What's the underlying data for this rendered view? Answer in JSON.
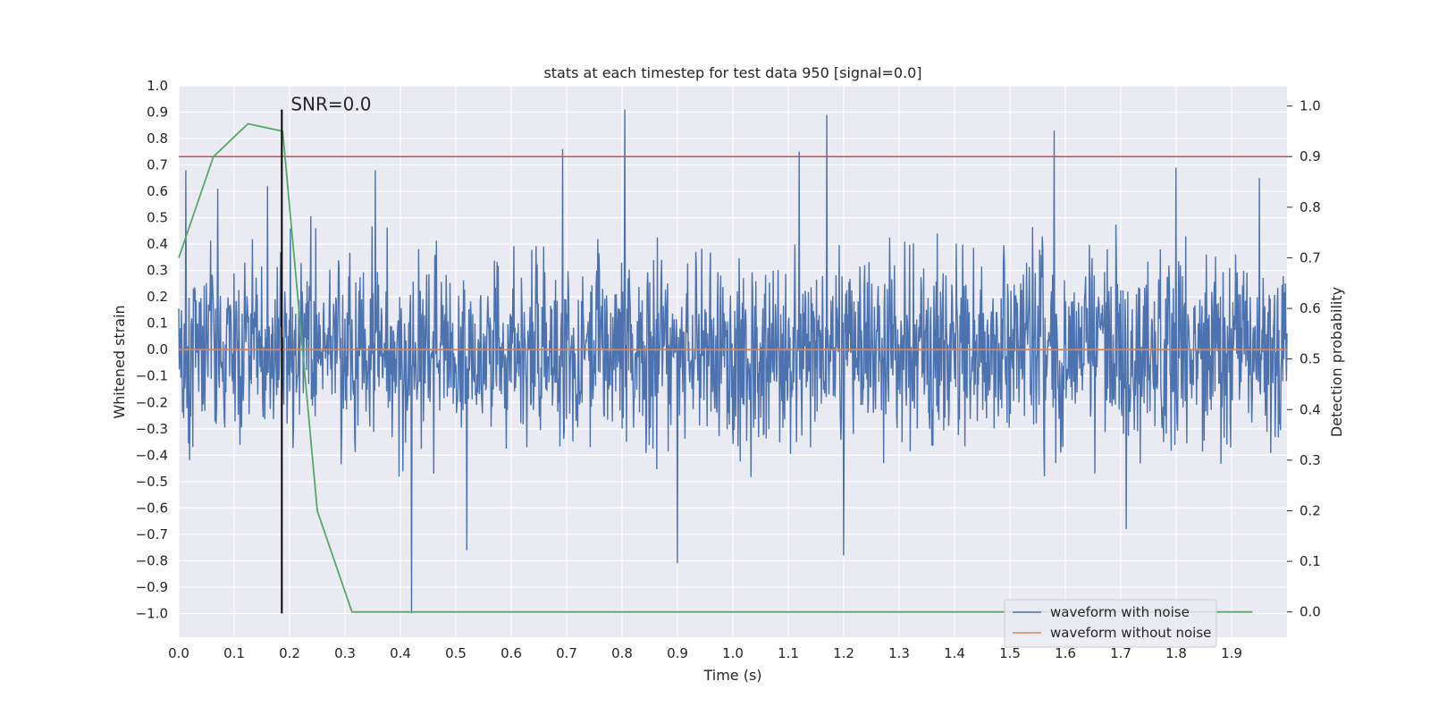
{
  "chart_data": {
    "type": "line",
    "title": "stats at each timestep for test data 950 [signal=0.0]",
    "xlabel": "Time (s)",
    "ylabel": "Whitened strain",
    "y2label": "Detection probability",
    "xlim": [
      0.0,
      2.0
    ],
    "ylim": [
      -1.09,
      1.0
    ],
    "y2lim": [
      -0.05,
      1.04
    ],
    "x_ticks": [
      "0.0",
      "0.1",
      "0.2",
      "0.3",
      "0.4",
      "0.5",
      "0.6",
      "0.7",
      "0.8",
      "0.9",
      "1.0",
      "1.1",
      "1.2",
      "1.3",
      "1.4",
      "1.5",
      "1.6",
      "1.7",
      "1.8",
      "1.9"
    ],
    "y_ticks": [
      "1.0",
      "0.9",
      "0.8",
      "0.7",
      "0.6",
      "0.5",
      "0.4",
      "0.3",
      "0.2",
      "0.1",
      "0.0",
      "−0.1",
      "−0.2",
      "−0.3",
      "−0.4",
      "−0.5",
      "−0.6",
      "−0.7",
      "−0.8",
      "−0.9",
      "−1.0"
    ],
    "y2_ticks": [
      "1.0",
      "0.9",
      "0.8",
      "0.7",
      "0.6",
      "0.5",
      "0.4",
      "0.3",
      "0.2",
      "0.1",
      "0.0"
    ],
    "grid": true,
    "legend_position": "lower-right",
    "series": [
      {
        "name": "waveform with noise",
        "color": "#4c72b0",
        "axis": "left",
        "noise_amplitude": 0.3,
        "samples": 2048,
        "peaks": [
          {
            "x": 0.013,
            "y": 0.68
          },
          {
            "x": 0.07,
            "y": 0.61
          },
          {
            "x": 0.16,
            "y": 0.62
          },
          {
            "x": 0.355,
            "y": 0.68
          },
          {
            "x": 0.42,
            "y": -1.0
          },
          {
            "x": 0.52,
            "y": -0.76
          },
          {
            "x": 0.693,
            "y": 0.76
          },
          {
            "x": 0.805,
            "y": 0.91
          },
          {
            "x": 0.9,
            "y": -0.81
          },
          {
            "x": 1.12,
            "y": 0.75
          },
          {
            "x": 1.17,
            "y": 0.89
          },
          {
            "x": 1.2,
            "y": -0.78
          },
          {
            "x": 1.58,
            "y": 0.83
          },
          {
            "x": 1.71,
            "y": -0.68
          },
          {
            "x": 1.8,
            "y": 0.69
          },
          {
            "x": 1.95,
            "y": 0.65
          }
        ]
      },
      {
        "name": "waveform without noise",
        "color": "#dd8452",
        "axis": "left",
        "x": [
          0.0,
          2.0
        ],
        "y": [
          0.0,
          0.0
        ]
      },
      {
        "name": "",
        "color": "#55a868",
        "axis": "right",
        "x": [
          0.0,
          0.0625,
          0.125,
          0.1875,
          0.25,
          0.3125,
          0.375,
          0.4375,
          0.5,
          1.0,
          1.5,
          1.9375
        ],
        "y": [
          0.7,
          0.9,
          0.965,
          0.95,
          0.2,
          0.0,
          0.0,
          0.0,
          0.0,
          0.0,
          0.0,
          0.0
        ]
      }
    ],
    "threshold": {
      "axis": "right",
      "y": 0.9,
      "color": "#c44e52"
    },
    "marker": {
      "x": 0.186,
      "label": "SNR=0.0",
      "color": "#000000",
      "y_top": 0.91,
      "y_bottom": -1.0
    }
  }
}
